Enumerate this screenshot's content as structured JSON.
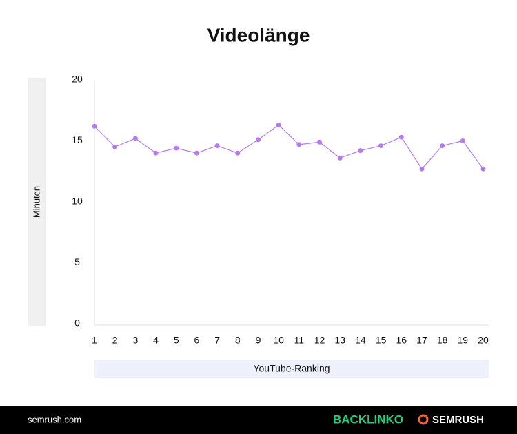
{
  "chart_data": {
    "type": "line",
    "title": "Videolänge",
    "x_label": "YouTube-Ranking",
    "y_label": "Minuten",
    "categories": [
      "1",
      "2",
      "3",
      "4",
      "5",
      "6",
      "7",
      "8",
      "9",
      "10",
      "11",
      "12",
      "13",
      "14",
      "15",
      "16",
      "17",
      "18",
      "19",
      "20"
    ],
    "series": [
      {
        "name": "Minuten",
        "color": "#b57bee",
        "values": [
          16.2,
          14.5,
          15.2,
          14.0,
          14.4,
          14.0,
          14.6,
          14.0,
          15.1,
          16.3,
          14.7,
          14.9,
          13.6,
          14.2,
          14.6,
          15.3,
          12.7,
          14.6,
          15.0,
          12.7
        ]
      }
    ],
    "ylim": [
      0,
      20
    ],
    "yticks": [
      0,
      5,
      10,
      15,
      20
    ],
    "grid": false
  },
  "footer": {
    "site": "semrush.com",
    "brand1": "BACKLINKO",
    "brand2": "SEMRUSH"
  }
}
